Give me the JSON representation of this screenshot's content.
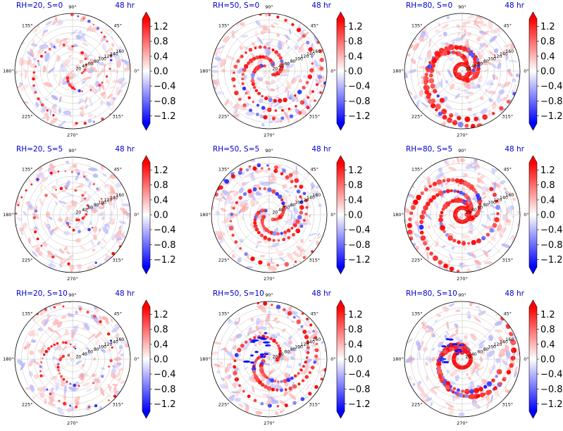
{
  "chart_data": {
    "type": "heatmap",
    "projection": "polar",
    "rows": 3,
    "columns": 3,
    "colormap": "bwr",
    "color_range": [
      -1.4,
      1.4
    ],
    "colorbar_extend": "both",
    "colorbar_ticks": [
      "1.2",
      "0.8",
      "0.4",
      "0.0",
      "−0.4",
      "−0.8",
      "−1.2"
    ],
    "colorbar_tick_values": [
      1.2,
      0.8,
      0.4,
      0.0,
      -0.4,
      -0.8,
      -1.2
    ],
    "theta_tick_labels": [
      "0°",
      "45°",
      "90°",
      "135°",
      "180°",
      "225°",
      "270°",
      "315°"
    ],
    "theta_tick_values": [
      0,
      45,
      90,
      135,
      180,
      225,
      270,
      315
    ],
    "radial_tick_labels": [
      "20",
      "40",
      "60",
      "80",
      "100",
      "120",
      "140",
      "160"
    ],
    "radial_tick_values": [
      20,
      40,
      60,
      80,
      100,
      120,
      140,
      160
    ],
    "radial_max": 180,
    "radial_label_angle": 22.5,
    "grid": true,
    "panels": [
      {
        "title": "RH=20, S=0",
        "time": "48 hr",
        "rh": 20,
        "s": 0
      },
      {
        "title": "RH=50, S=0",
        "time": "48 hr",
        "rh": 50,
        "s": 0
      },
      {
        "title": "RH=80, S=0",
        "time": "48 hr",
        "rh": 80,
        "s": 0
      },
      {
        "title": "RH=20, S=5",
        "time": "48 hr",
        "rh": 20,
        "s": 5
      },
      {
        "title": "RH=50, S=5",
        "time": "48 hr",
        "rh": 50,
        "s": 5
      },
      {
        "title": "RH=80, S=5",
        "time": "48 hr",
        "rh": 80,
        "s": 5
      },
      {
        "title": "RH=20, S=10",
        "time": "48 hr",
        "rh": 20,
        "s": 10
      },
      {
        "title": "RH=50, S=10",
        "time": "48 hr",
        "rh": 50,
        "s": 10
      },
      {
        "title": "RH=80, S=10",
        "time": "48 hr",
        "rh": 80,
        "s": 10
      }
    ]
  },
  "colors": {
    "title": "#0000cc",
    "cmap_low": "#0000ff",
    "cmap_mid": "#ffffff",
    "cmap_high": "#ff0000",
    "grid": "#b0b0b0"
  }
}
